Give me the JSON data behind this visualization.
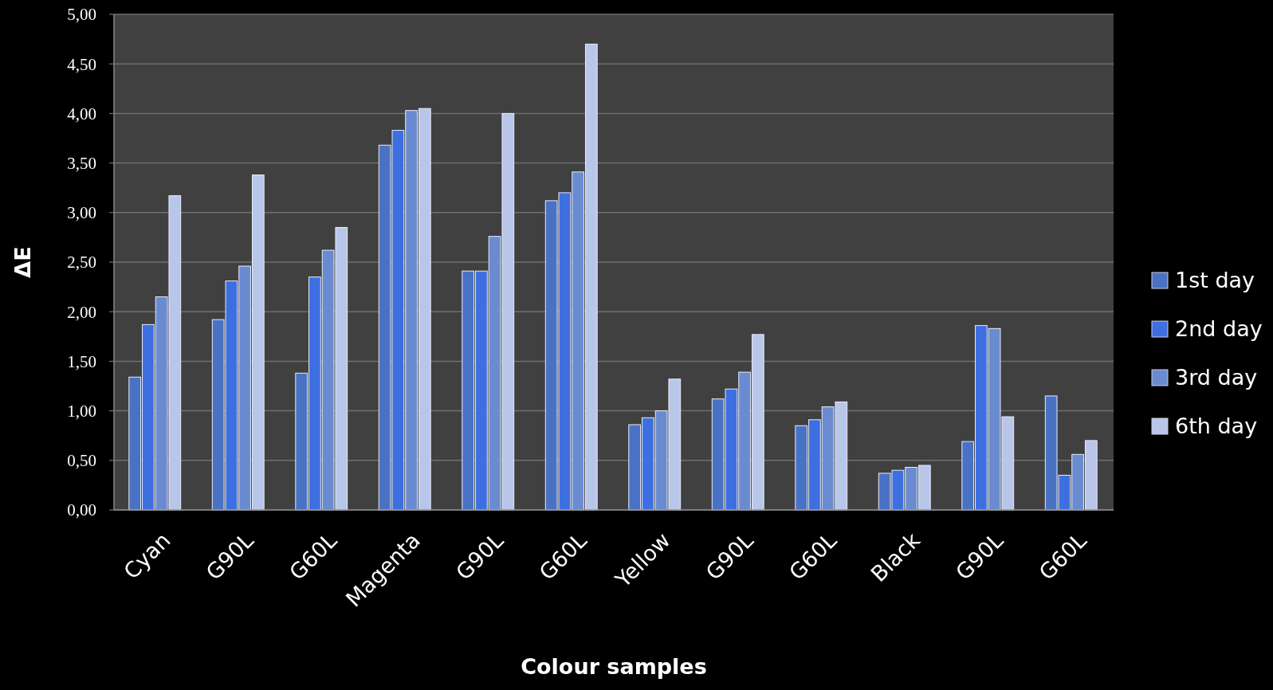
{
  "chart_data": {
    "type": "bar",
    "xlabel": "Colour samples",
    "ylabel": "ΔE",
    "categories": [
      "Cyan",
      "G90L",
      "G60L",
      "Magenta",
      "G90L",
      "G60L",
      "Yellow",
      "G90L",
      "G60L",
      "Black",
      "G90L",
      "G60L"
    ],
    "series": [
      {
        "name": "1st day",
        "color": "#4a72c4",
        "values": [
          1.34,
          1.92,
          1.38,
          3.68,
          2.41,
          3.12,
          0.86,
          1.12,
          0.85,
          0.37,
          0.69,
          1.15
        ]
      },
      {
        "name": "2nd day",
        "color": "#3d6fe0",
        "values": [
          1.87,
          2.31,
          2.35,
          3.83,
          2.41,
          3.2,
          0.93,
          1.22,
          0.91,
          0.4,
          1.86,
          0.35
        ]
      },
      {
        "name": "3rd day",
        "color": "#6a8bd0",
        "values": [
          2.15,
          2.46,
          2.62,
          4.03,
          2.76,
          3.41,
          1.0,
          1.39,
          1.04,
          0.43,
          1.83,
          0.56
        ]
      },
      {
        "name": "6th day",
        "color": "#b8c6ea",
        "values": [
          3.17,
          3.38,
          2.85,
          4.05,
          4.0,
          4.7,
          1.32,
          1.77,
          1.09,
          0.45,
          0.94,
          0.7
        ]
      }
    ],
    "ylim": [
      0,
      5
    ],
    "yticks": [
      {
        "value": 0,
        "label": "0,00"
      },
      {
        "value": 0.5,
        "label": "0,50"
      },
      {
        "value": 1,
        "label": "1,00"
      },
      {
        "value": 1.5,
        "label": "1,50"
      },
      {
        "value": 2,
        "label": "2,00"
      },
      {
        "value": 2.5,
        "label": "2,50"
      },
      {
        "value": 3,
        "label": "3,00"
      },
      {
        "value": 3.5,
        "label": "3,50"
      },
      {
        "value": 4,
        "label": "4,00"
      },
      {
        "value": 4.5,
        "label": "4,50"
      },
      {
        "value": 5,
        "label": "5,00"
      }
    ],
    "grid": "y",
    "legend": "right"
  }
}
